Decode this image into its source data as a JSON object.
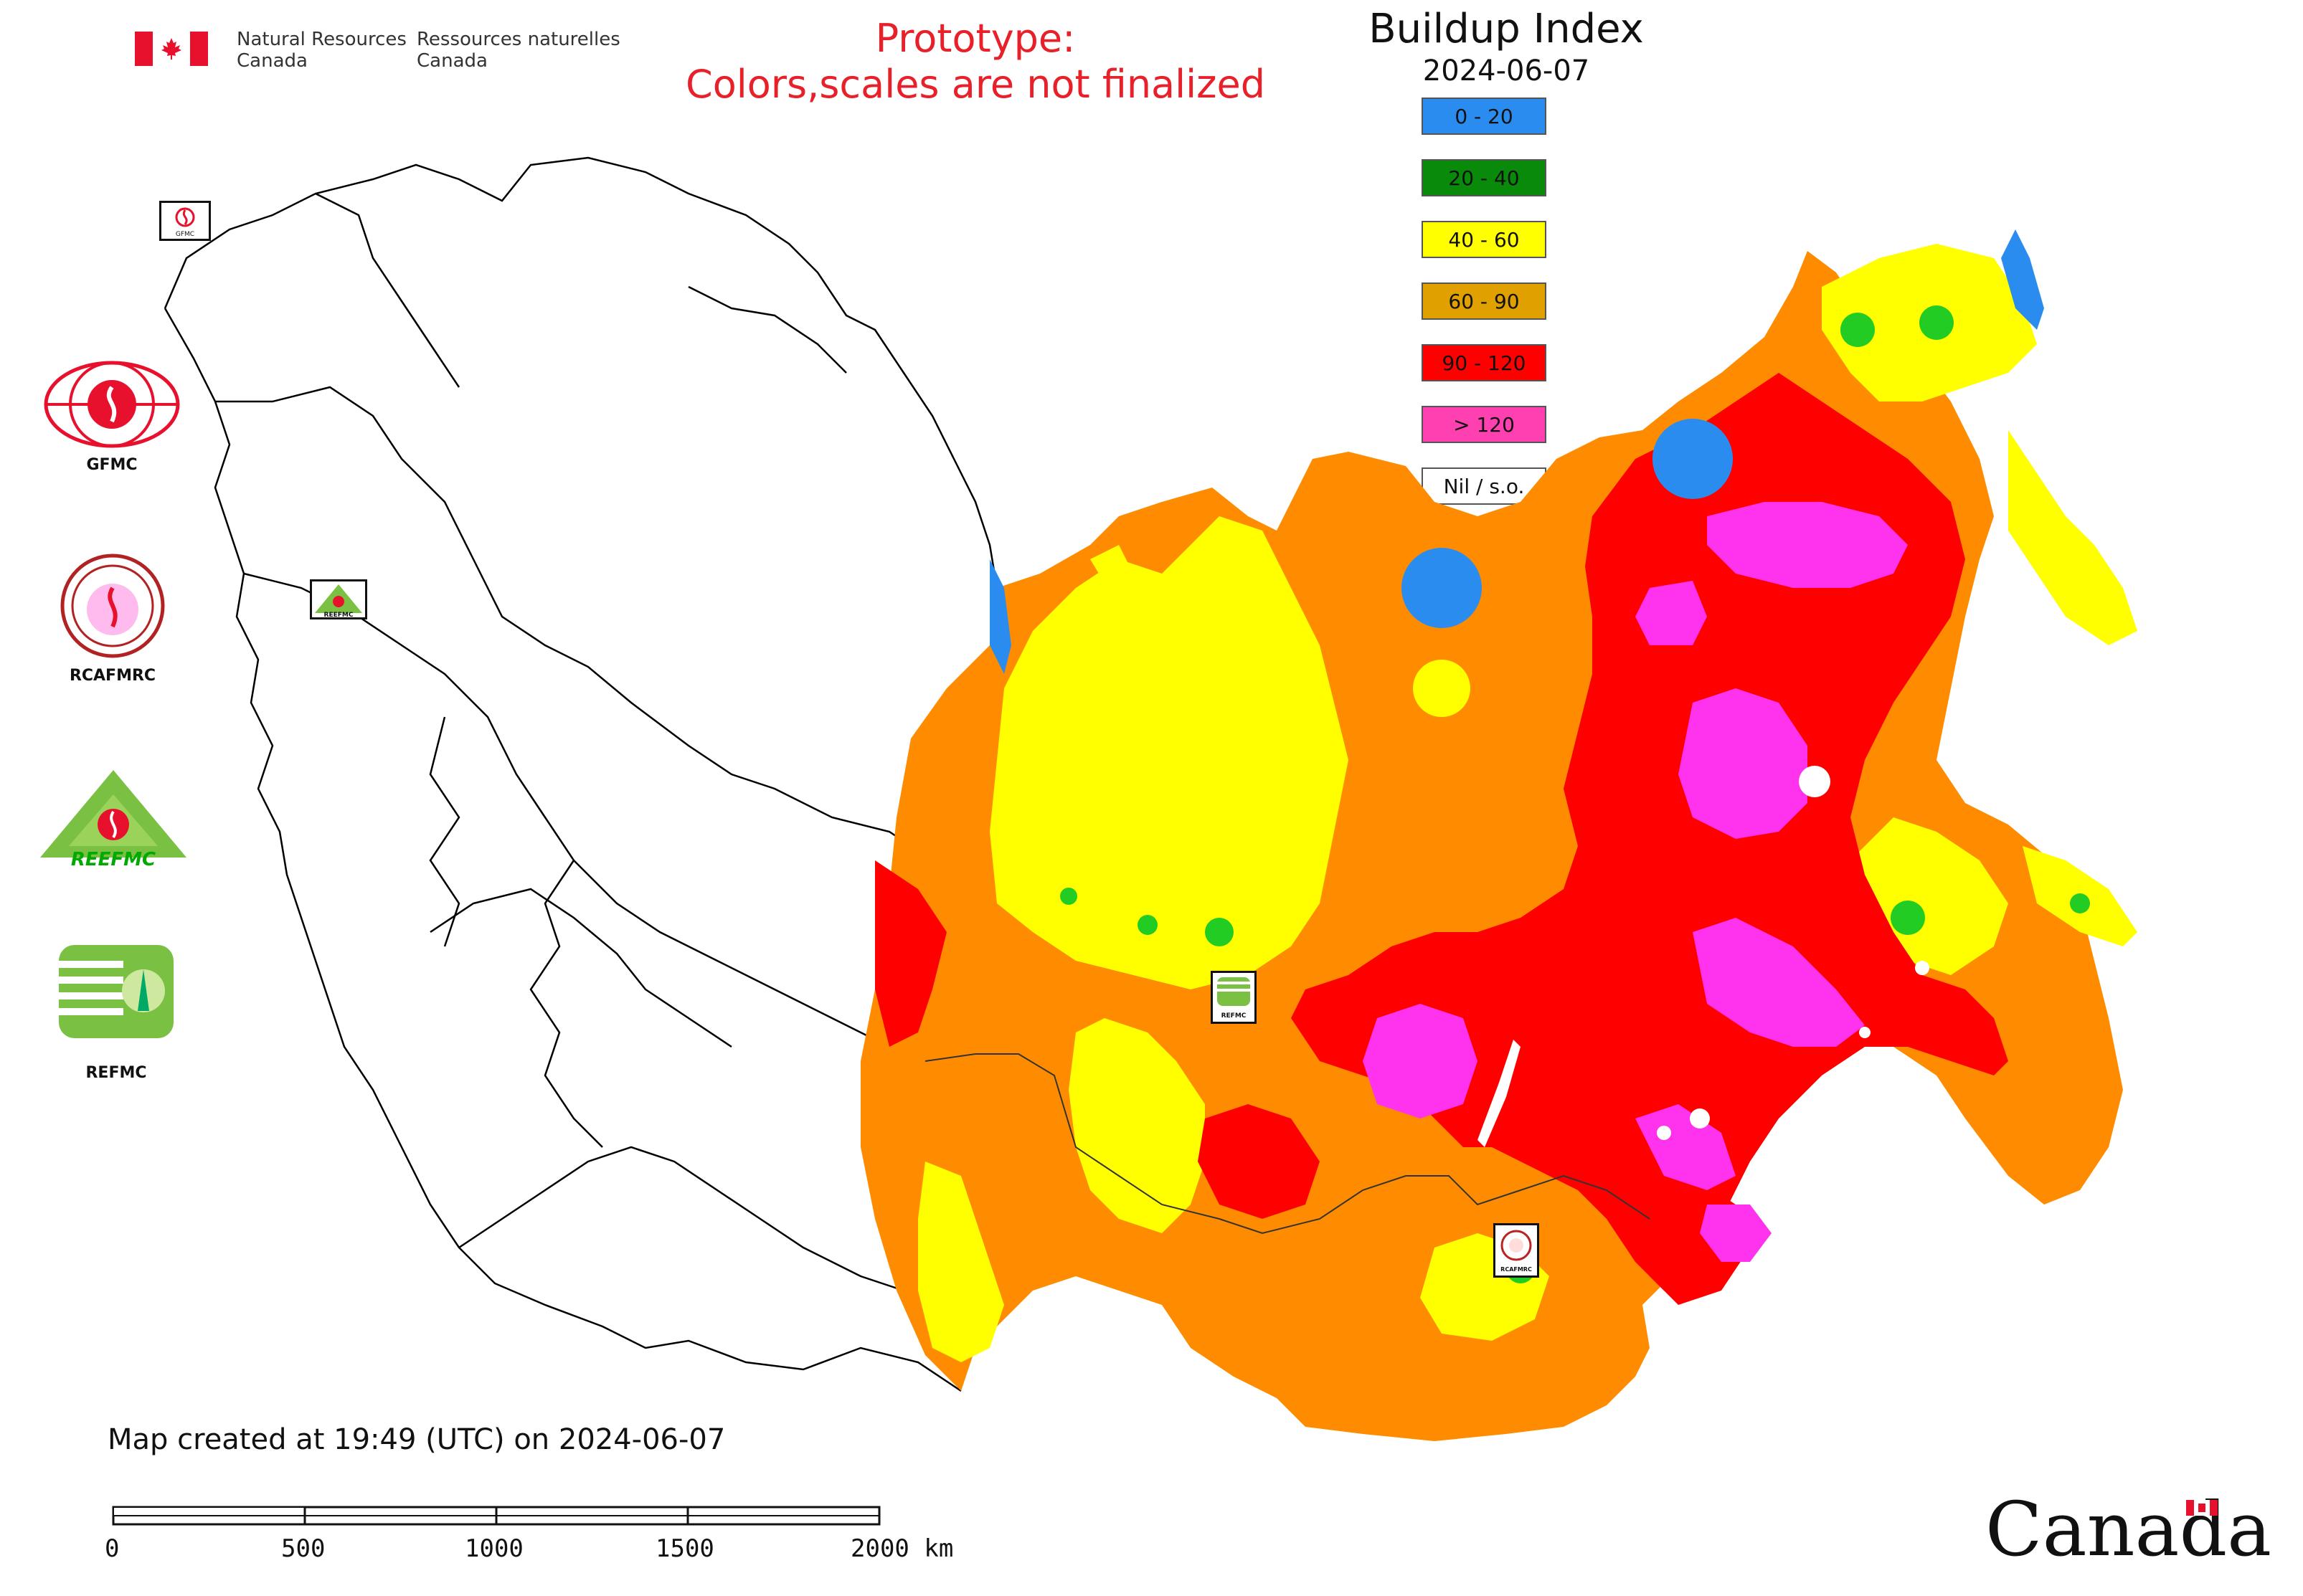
{
  "header": {
    "gov_en_line1": "Natural Resources",
    "gov_en_line2": "Canada",
    "gov_fr_line1": "Ressources naturelles",
    "gov_fr_line2": "Canada",
    "notice_line1": "Prototype:",
    "notice_line2": "Colors,scales are not finalized"
  },
  "legend": {
    "title": "Buildup Index",
    "date": "2024-06-07",
    "classes": [
      {
        "label": "0 - 20",
        "color": "#2b8cf0"
      },
      {
        "label": "20 - 40",
        "color": "#0a8a0a"
      },
      {
        "label": "40 - 60",
        "color": "#ffff00"
      },
      {
        "label": "60 - 90",
        "color": "#e0a000"
      },
      {
        "label": "90 - 120",
        "color": "#ff0000"
      },
      {
        "label": "> 120",
        "color": "#ff40b0"
      },
      {
        "label": "Nil / s.o.",
        "color": "#ffffff"
      }
    ]
  },
  "map_colors": {
    "band_60_90": "#ff8c00",
    "outline": "#000000"
  },
  "side_logos": [
    {
      "name": "GFMC"
    },
    {
      "name": "RCAFMRC"
    },
    {
      "name": "REEFMC"
    },
    {
      "name": "REFMC"
    }
  ],
  "map_logo_labels": {
    "gfmc": "GFMC",
    "reefmc": "REEFMC",
    "refmc": "REFMC",
    "rcafmrc": "RCAFMRC"
  },
  "footer": {
    "credit": "Map created at 19:49 (UTC) on 2024-06-07",
    "scale_labels": [
      "0",
      "500",
      "1000",
      "1500",
      "2000 km"
    ],
    "wordmark": "Canada"
  }
}
